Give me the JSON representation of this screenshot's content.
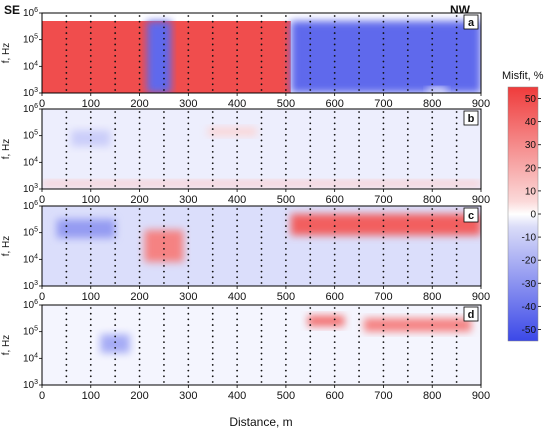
{
  "figure": {
    "left_label": "SE",
    "right_label": "NW",
    "xlabel": "Distance, m"
  },
  "colorbar": {
    "title": "Misfit, %",
    "ticks": [
      50,
      40,
      30,
      20,
      10,
      0,
      -10,
      -20,
      -30,
      -40,
      -50
    ],
    "range": [
      -55,
      55
    ],
    "colors": {
      "positive": "#ef3b3b",
      "negative": "#3b48e8",
      "neutral": "#ffffff"
    }
  },
  "chart_data": {
    "type": "heatmap",
    "xlabel": "Distance, m",
    "ylabel": "f, Hz",
    "xlim": [
      0,
      900
    ],
    "ylim": [
      1000,
      1000000
    ],
    "y_scale": "log",
    "x_ticks": [
      0,
      100,
      200,
      300,
      400,
      500,
      600,
      700,
      800,
      900
    ],
    "y_tick_exponents": [
      3,
      4,
      5,
      6
    ],
    "stations_x": [
      50,
      100,
      150,
      200,
      250,
      300,
      350,
      400,
      450,
      500,
      550,
      600,
      650,
      700,
      750,
      800,
      850
    ],
    "panels": [
      {
        "label": "a",
        "misfit_regions": [
          {
            "x": [
              0,
              510
            ],
            "logf": [
              3,
              5.7
            ],
            "misfit": 50
          },
          {
            "x": [
              215,
              265
            ],
            "logf": [
              3,
              5.7
            ],
            "misfit": -45
          },
          {
            "x": [
              510,
              900
            ],
            "logf": [
              3,
              5.7
            ],
            "misfit": -45
          },
          {
            "x": [
              790,
              830
            ],
            "logf": [
              3,
              3.2
            ],
            "misfit": 0
          }
        ]
      },
      {
        "label": "b",
        "misfit_regions": [
          {
            "x": [
              0,
              900
            ],
            "logf": [
              3,
              6
            ],
            "misfit": -5
          },
          {
            "x": [
              60,
              140
            ],
            "logf": [
              4.6,
              5.2
            ],
            "misfit": -15
          },
          {
            "x": [
              340,
              440
            ],
            "logf": [
              5.0,
              5.3
            ],
            "misfit": 12
          },
          {
            "x": [
              0,
              900
            ],
            "logf": [
              3.1,
              3.3
            ],
            "misfit": 15
          }
        ]
      },
      {
        "label": "c",
        "misfit_regions": [
          {
            "x": [
              0,
              900
            ],
            "logf": [
              3,
              6
            ],
            "misfit": -10
          },
          {
            "x": [
              30,
              150
            ],
            "logf": [
              4.8,
              5.5
            ],
            "misfit": -30
          },
          {
            "x": [
              210,
              290
            ],
            "logf": [
              3.9,
              5.1
            ],
            "misfit": 35
          },
          {
            "x": [
              510,
              900
            ],
            "logf": [
              4.9,
              5.7
            ],
            "misfit": 45
          }
        ]
      },
      {
        "label": "d",
        "misfit_regions": [
          {
            "x": [
              0,
              900
            ],
            "logf": [
              3,
              6
            ],
            "misfit": -3
          },
          {
            "x": [
              120,
              180
            ],
            "logf": [
              4.2,
              4.9
            ],
            "misfit": -25
          },
          {
            "x": [
              545,
              620
            ],
            "logf": [
              5.2,
              5.6
            ],
            "misfit": 40
          },
          {
            "x": [
              660,
              880
            ],
            "logf": [
              5.0,
              5.5
            ],
            "misfit": 35
          }
        ]
      }
    ]
  }
}
